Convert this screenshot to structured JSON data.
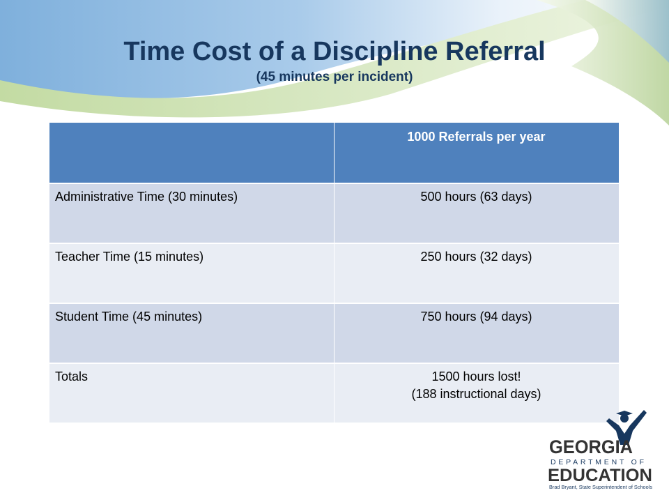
{
  "slide": {
    "title": "Time Cost of a Discipline Referral",
    "subtitle": "(45 minutes per incident)"
  },
  "table": {
    "header": [
      "",
      "1000 Referrals per year"
    ],
    "rows": [
      {
        "label": "Administrative Time (30 minutes)",
        "value": "500 hours (63 days)",
        "value_line2": ""
      },
      {
        "label": "Teacher Time (15 minutes)",
        "value": "250 hours (32 days)",
        "value_line2": ""
      },
      {
        "label": "Student Time (45 minutes)",
        "value": "750 hours (94 days)",
        "value_line2": ""
      },
      {
        "label": "Totals",
        "value": "1500 hours lost!",
        "value_line2": "(188 instructional days)"
      }
    ]
  },
  "logo": {
    "line1": "GEORGIA",
    "line2": "DEPARTMENT OF",
    "line3": "EDUCATION",
    "tagline": "Brad Bryant, State Superintendent of Schools"
  },
  "colors": {
    "title": "#17375e",
    "header_fill": "#4f81bd",
    "row_dark": "#d0d8e8",
    "row_light": "#e9edf4",
    "wave_blue": "#8db7dc",
    "wave_green": "#c7dda9"
  }
}
